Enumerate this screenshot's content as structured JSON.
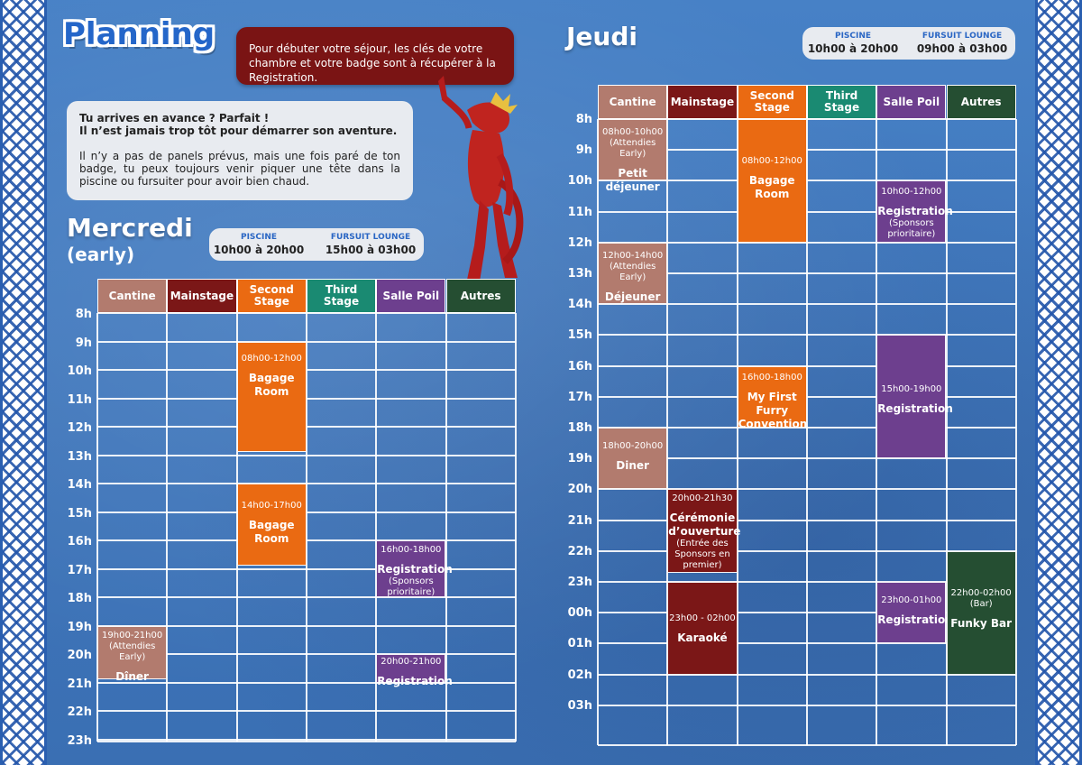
{
  "page_title": "Planning",
  "intro_bubble": "Pour débuter votre séjour, les clés de votre chambre et votre badge sont à récupérer à la Registration.",
  "early_bubble": {
    "line1": "Tu arrives en avance ? Parfait !",
    "line2": "Il n’est jamais trop tôt pour démarrer son aventure.",
    "para": "Il n’y a pas de panels prévus, mais une fois paré de ton badge, tu peux toujours venir piquer une tête dans la piscine ou fursuiter pour avoir bien chaud."
  },
  "colors": {
    "cantine": "#b27b6e",
    "mainstage": "#7b1717",
    "second": "#ea6a12",
    "third": "#1a8a72",
    "salle": "#6d3f8e",
    "autres": "#254e32"
  },
  "columns": [
    "Cantine",
    "Mainstage",
    "Second Stage",
    "Third Stage",
    "Salle Poil",
    "Autres"
  ],
  "mercredi": {
    "title": "Mercredi",
    "subtitle": "(early)",
    "piscine_label": "PISCINE",
    "piscine_hours": "10h00 à 20h00",
    "fursuit_label": "FURSUIT LOUNGE",
    "fursuit_hours": "15h00 à 03h00",
    "hours": [
      "8h",
      "9h",
      "10h",
      "11h",
      "12h",
      "13h",
      "14h",
      "15h",
      "16h",
      "17h",
      "18h",
      "19h",
      "20h",
      "21h",
      "22h",
      "23h"
    ],
    "events": [
      {
        "id": "m1",
        "time": "08h00-12h00",
        "name": "Bagage Room",
        "sub": ""
      },
      {
        "id": "m2",
        "time": "14h00-17h00",
        "name": "Bagage Room",
        "sub": ""
      },
      {
        "id": "m3",
        "time": "16h00-18h00",
        "name": "Registration",
        "sub": "(Sponsors prioritaire)"
      },
      {
        "id": "m4",
        "time": "19h00-21h00",
        "sub0": "(Attendies Early)",
        "name": "Dîner",
        "sub": ""
      },
      {
        "id": "m5",
        "time": "20h00-21h00",
        "name": "Registration",
        "sub": ""
      }
    ]
  },
  "jeudi": {
    "title": "Jeudi",
    "piscine_label": "PISCINE",
    "piscine_hours": "10h00 à 20h00",
    "fursuit_label": "FURSUIT LOUNGE",
    "fursuit_hours": "09h00 à 03h00",
    "hours": [
      "8h",
      "9h",
      "10h",
      "11h",
      "12h",
      "13h",
      "14h",
      "15h",
      "16h",
      "17h",
      "18h",
      "19h",
      "20h",
      "21h",
      "22h",
      "23h",
      "00h",
      "01h",
      "02h",
      "03h"
    ],
    "events": [
      {
        "id": "j1",
        "time": "08h00-10h00",
        "sub0": "(Attendies Early)",
        "name": "Petit déjeuner",
        "sub": ""
      },
      {
        "id": "j2",
        "time": "08h00-12h00",
        "name": "Bagage Room",
        "sub": ""
      },
      {
        "id": "j3",
        "time": "10h00-12h00",
        "name": "Registration",
        "sub": "(Sponsors prioritaire)"
      },
      {
        "id": "j4",
        "time": "12h00-14h00",
        "sub0": "(Attendies Early)",
        "name": "Déjeuner",
        "sub": ""
      },
      {
        "id": "j5",
        "time": "16h00-18h00",
        "name": "My First Furry Convention",
        "sub": ""
      },
      {
        "id": "j6",
        "time": "15h00-19h00",
        "name": "Registration",
        "sub": ""
      },
      {
        "id": "j7",
        "time": "18h00-20h00",
        "name": "Diner",
        "sub": ""
      },
      {
        "id": "j8",
        "time": "20h00-21h30",
        "name": "Cérémonie d’ouverture",
        "sub": "(Entrée des Sponsors en premier)"
      },
      {
        "id": "j9",
        "time": "23h00 - 02h00",
        "name": "Karaoké",
        "sub": ""
      },
      {
        "id": "j10",
        "time": "23h00-01h00",
        "name": "Registration",
        "sub": ""
      },
      {
        "id": "j11",
        "time": "22h00-02h00",
        "sub0": "(Bar)",
        "name": "Funky Bar",
        "sub": ""
      }
    ]
  }
}
